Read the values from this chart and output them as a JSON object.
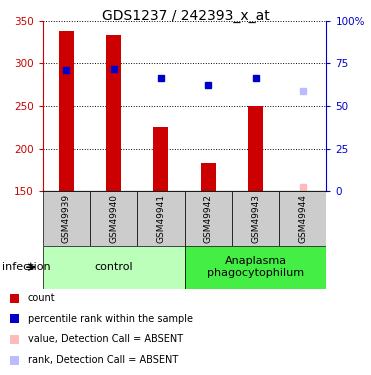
{
  "title": "GDS1237 / 242393_x_at",
  "samples": [
    "GSM49939",
    "GSM49940",
    "GSM49941",
    "GSM49942",
    "GSM49943",
    "GSM49944"
  ],
  "bar_values": [
    338,
    333,
    225,
    183,
    250,
    null
  ],
  "bar_color": "#cc0000",
  "rank_values": [
    292,
    293,
    283,
    274,
    283,
    null
  ],
  "rank_absent": [
    null,
    null,
    null,
    null,
    null,
    268
  ],
  "value_absent": [
    null,
    null,
    null,
    null,
    null,
    155
  ],
  "ylim_left": [
    150,
    350
  ],
  "ylim_right": [
    0,
    100
  ],
  "yticks_left": [
    150,
    200,
    250,
    300,
    350
  ],
  "yticks_right": [
    0,
    25,
    50,
    75,
    100
  ],
  "yticklabels_right": [
    "0",
    "25",
    "50",
    "75",
    "100%"
  ],
  "groups": [
    {
      "label": "control",
      "indices": [
        0,
        1,
        2
      ],
      "color": "#bbffbb"
    },
    {
      "label": "Anaplasma\nphagocytophilum",
      "indices": [
        3,
        4,
        5
      ],
      "color": "#44ee44"
    }
  ],
  "infection_label": "infection",
  "legend": [
    {
      "label": "count",
      "color": "#cc0000"
    },
    {
      "label": "percentile rank within the sample",
      "color": "#0000cc"
    },
    {
      "label": "value, Detection Call = ABSENT",
      "color": "#ffbbbb"
    },
    {
      "label": "rank, Detection Call = ABSENT",
      "color": "#bbbbff"
    }
  ],
  "sample_box_color": "#cccccc",
  "bar_bottom": 150,
  "bar_width": 0.32,
  "marker_size": 5,
  "title_fontsize": 10,
  "tick_fontsize": 7.5,
  "sample_fontsize": 6.5,
  "group_fontsize": 8,
  "legend_fontsize": 7,
  "infection_fontsize": 8
}
